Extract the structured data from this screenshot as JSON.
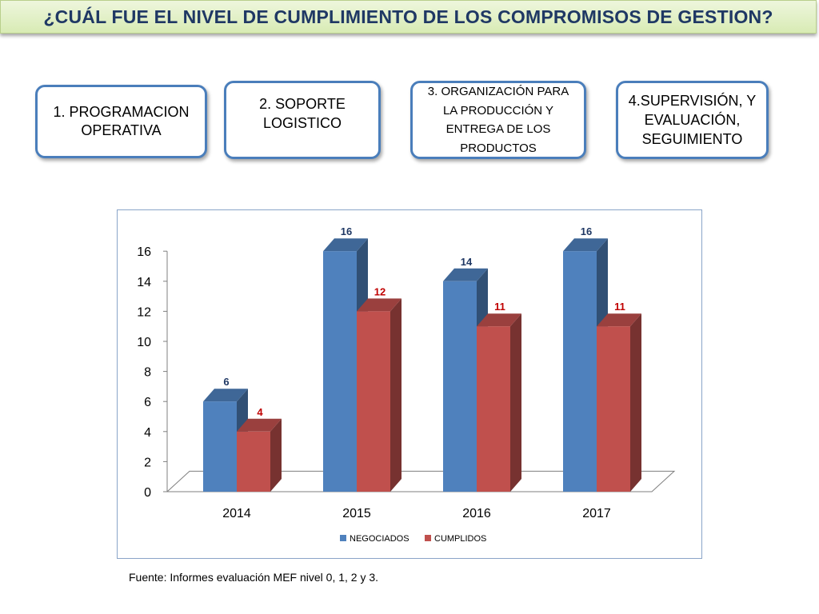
{
  "title": "¿CUÁL FUE EL NIVEL DE CUMPLIMIENTO DE LOS COMPROMISOS DE GESTION?",
  "boxes": [
    "1. PROGRAMACION OPERATIVA",
    "2. SOPORTE LOGISTICO",
    "3. ORGANIZACIÓN PARA LA PRODUCCIÓN Y ENTREGA DE LOS PRODUCTOS",
    "4.SUPERVISIÓN, Y EVALUACIÓN, SEGUIMIENTO"
  ],
  "source": "Fuente: Informes evaluación MEF nivel 0, 1, 2 y 3.",
  "colors": {
    "negociados": "#4f81bd",
    "cumplidos": "#c0504d",
    "neg_label": "#1f3864",
    "cum_label": "#c00000"
  },
  "chart_data": {
    "type": "bar",
    "categories": [
      "2014",
      "2015",
      "2016",
      "2017"
    ],
    "series": [
      {
        "name": "NEGOCIADOS",
        "values": [
          6,
          16,
          14,
          16
        ]
      },
      {
        "name": "CUMPLIDOS",
        "values": [
          4,
          12,
          11,
          11
        ]
      }
    ],
    "yticks": [
      "0",
      "2",
      "4",
      "6",
      "8",
      "10",
      "12",
      "14",
      "16"
    ],
    "ylim": [
      0,
      16
    ],
    "legend": "bottom",
    "grid": false,
    "style": "3d-clustered-column"
  }
}
